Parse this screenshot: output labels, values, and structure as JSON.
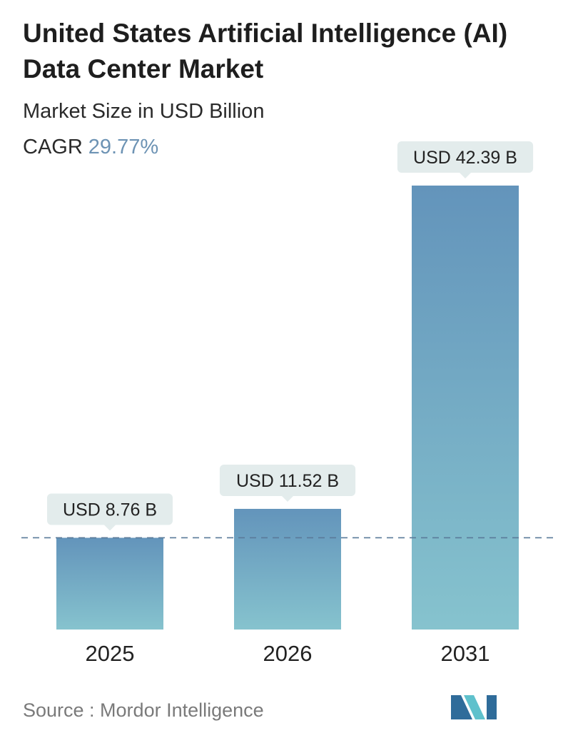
{
  "header": {
    "title": "United States Artificial Intelligence (AI) Data Center Market",
    "subtitle": "Market Size in USD Billion",
    "cagr_label": "CAGR",
    "cagr_value": "29.77%"
  },
  "colors": {
    "bar_top": "#6394bb",
    "bar_bottom": "#86c3ce",
    "label_bg": "#e3ecec",
    "reference_line": "#5a7a99",
    "cagr_accent": "#6d93b4",
    "logo_dark": "#2f6c9a",
    "logo_light": "#5fc1cc"
  },
  "chart_data": {
    "type": "bar",
    "categories": [
      "2025",
      "2026",
      "2031"
    ],
    "values": [
      8.76,
      11.52,
      42.39
    ],
    "data_labels": [
      "USD 8.76 B",
      "USD 11.52 B",
      "USD 42.39 B"
    ],
    "ylim": [
      0,
      42.39
    ],
    "grid": false,
    "reference_line_value": 8.76
  },
  "footer": {
    "source": "Source :  Mordor Intelligence",
    "logo": "mordor-intelligence-logo"
  }
}
